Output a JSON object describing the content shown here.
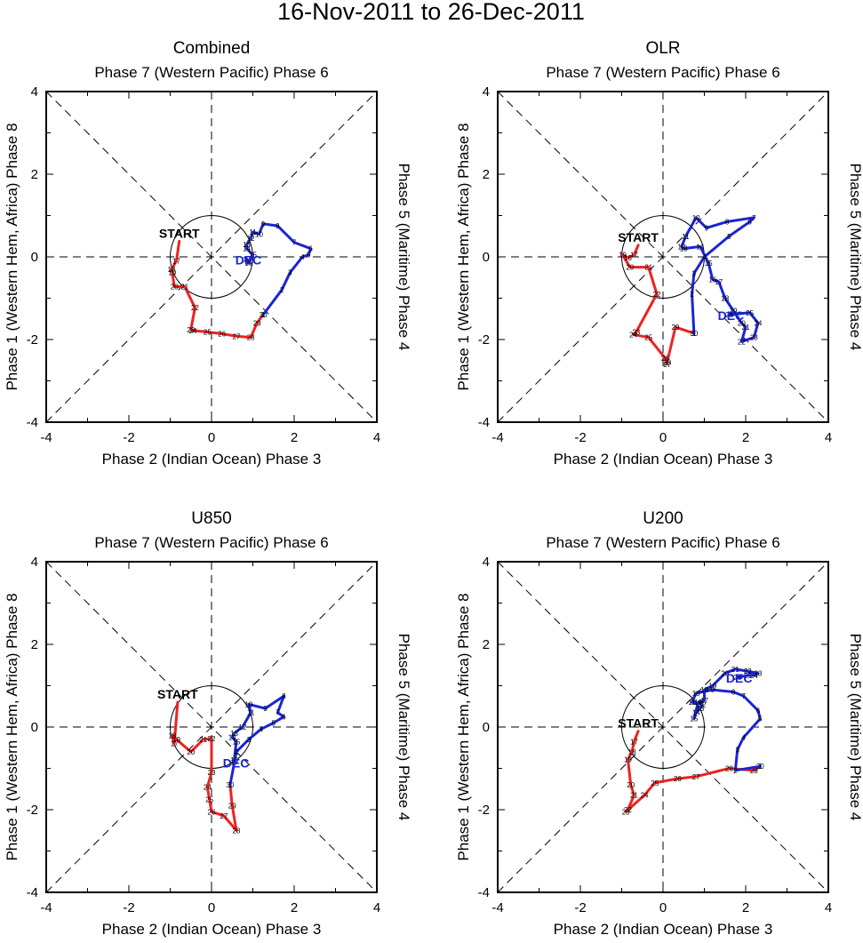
{
  "title": "16-Nov-2011 to 26-Dec-2011",
  "axis_labels": {
    "top": "Phase 7 (Western Pacific) Phase 6",
    "bottom": "Phase 2 (Indian Ocean) Phase 3",
    "left": "Phase 1 (Western Hem, Africa) Phase 8",
    "right": "Phase 5 (Maritime) Phase 4"
  },
  "start_label": "START",
  "dec_label": "DEC",
  "colors": {
    "november": "#ee2222",
    "december": "#1a24d6"
  },
  "chart_data": [
    {
      "type": "line",
      "panel": "Combined",
      "title": "Combined",
      "xlim": [
        -4,
        4
      ],
      "ylim": [
        -4,
        4
      ],
      "xticks": [
        "-4",
        "-2",
        "0",
        "2",
        "4"
      ],
      "yticks": [
        "-4",
        "-2",
        "0",
        "2",
        "4"
      ],
      "series": [
        {
          "name": "November",
          "labels": [
            "",
            "17",
            "18",
            "19",
            "20",
            "21",
            "22",
            "23",
            "24",
            "25",
            "26",
            "27",
            "28",
            "29",
            "30"
          ],
          "x": [
            -0.78,
            -0.85,
            -0.97,
            -0.95,
            -0.9,
            -0.65,
            -0.4,
            -0.5,
            -0.45,
            -0.1,
            0.25,
            0.6,
            0.95,
            1.1,
            1.25
          ],
          "y": [
            0.38,
            -0.1,
            -0.3,
            -0.38,
            -0.72,
            -0.72,
            -1.23,
            -1.76,
            -1.78,
            -1.82,
            -1.86,
            -1.92,
            -1.95,
            -1.6,
            -1.4
          ]
        },
        {
          "name": "December",
          "labels": [
            "1",
            "2",
            "3",
            "4",
            "5",
            "6",
            "7",
            "8",
            "9",
            "10",
            "11",
            "12",
            "13",
            "14",
            "15",
            "16",
            "17"
          ],
          "x": [
            1.25,
            1.7,
            1.9,
            2.2,
            2.35,
            2.4,
            2.0,
            1.6,
            1.25,
            1.15,
            1.0,
            0.95,
            0.85,
            0.85,
            1.0,
            0.9,
            0.85
          ],
          "y": [
            -1.4,
            -0.8,
            -0.38,
            0.0,
            0.05,
            0.2,
            0.35,
            0.75,
            0.8,
            0.55,
            0.6,
            0.45,
            0.3,
            0.2,
            0.05,
            -0.15,
            -0.05
          ]
        }
      ]
    },
    {
      "type": "line",
      "panel": "OLR",
      "title": "OLR",
      "xlim": [
        -4,
        4
      ],
      "ylim": [
        -4,
        4
      ],
      "xticks": [
        "-4",
        "-2",
        "0",
        "2",
        "4"
      ],
      "yticks": [
        "-4",
        "-2",
        "0",
        "2",
        "4"
      ],
      "series": [
        {
          "name": "November",
          "labels": [
            "",
            "17",
            "18",
            "19",
            "20",
            "21",
            "22",
            "23",
            "24",
            "25",
            "26",
            "27",
            "28",
            "29",
            "30"
          ],
          "x": [
            -0.6,
            -0.7,
            -0.85,
            -0.98,
            -0.8,
            -0.35,
            -0.15,
            -0.65,
            -0.72,
            -0.35,
            0.05,
            0.1,
            0.1,
            0.3,
            0.75
          ],
          "y": [
            0.28,
            0.05,
            -0.02,
            0.05,
            -0.25,
            -0.25,
            -0.9,
            -1.82,
            -1.88,
            -1.95,
            -2.45,
            -2.6,
            -2.55,
            -1.7,
            -1.85
          ]
        },
        {
          "name": "December",
          "labels": [
            "1",
            "2",
            "3",
            "4",
            "5",
            "6",
            "7",
            "8",
            "9",
            "10",
            "11",
            "12",
            "13",
            "14",
            "15",
            "16",
            "17",
            "18",
            "19",
            "20",
            "21",
            "22",
            "23",
            "24",
            "25",
            "26"
          ],
          "x": [
            0.75,
            0.7,
            0.75,
            1.0,
            1.6,
            2.1,
            2.2,
            1.55,
            1.05,
            0.8,
            0.55,
            0.45,
            0.5,
            0.9,
            1.1,
            1.2,
            1.35,
            1.5,
            1.7,
            1.9,
            2.0,
            1.9,
            2.2,
            2.3,
            2.1,
            1.6
          ],
          "y": [
            -1.85,
            -0.9,
            -0.4,
            0.0,
            0.5,
            0.85,
            0.95,
            0.85,
            0.7,
            0.95,
            0.5,
            0.25,
            0.2,
            0.25,
            -0.15,
            -0.55,
            -0.6,
            -1.0,
            -1.3,
            -1.6,
            -1.7,
            -2.05,
            -1.95,
            -1.6,
            -1.35,
            -1.4
          ]
        }
      ]
    },
    {
      "type": "line",
      "panel": "U850",
      "title": "U850",
      "xlim": [
        -4,
        4
      ],
      "ylim": [
        -4,
        4
      ],
      "xticks": [
        "-4",
        "-2",
        "0",
        "2",
        "4"
      ],
      "yticks": [
        "-4",
        "-2",
        "0",
        "2",
        "4"
      ],
      "series": [
        {
          "name": "November",
          "labels": [
            "",
            "17",
            "18",
            "19",
            "20",
            "21",
            "22",
            "23",
            "24",
            "25",
            "26",
            "27",
            "28",
            "29",
            "30"
          ],
          "x": [
            -0.82,
            -0.9,
            -0.95,
            -0.85,
            -0.5,
            -0.2,
            0.0,
            0.0,
            -0.1,
            -0.05,
            0.0,
            0.3,
            0.6,
            0.5,
            0.45
          ],
          "y": [
            0.6,
            -0.4,
            -0.2,
            -0.3,
            -0.6,
            -0.3,
            -0.28,
            -1.1,
            -1.45,
            -1.75,
            -2.05,
            -2.15,
            -2.5,
            -1.9,
            -1.4
          ]
        },
        {
          "name": "December",
          "labels": [
            "1",
            "2",
            "3",
            "4",
            "5",
            "6",
            "7",
            "8",
            "9",
            "10",
            "11",
            "12",
            "13",
            "14",
            "15",
            "16",
            "17"
          ],
          "x": [
            0.45,
            0.6,
            0.9,
            1.2,
            1.5,
            1.75,
            1.6,
            1.75,
            1.3,
            0.9,
            0.95,
            0.75,
            0.55,
            0.5,
            0.6,
            0.55,
            0.55
          ],
          "y": [
            -1.4,
            -0.6,
            -0.3,
            -0.05,
            0.1,
            0.25,
            0.35,
            0.75,
            0.45,
            0.55,
            0.35,
            0.0,
            -0.15,
            -0.25,
            -0.35,
            -0.8,
            -0.85
          ]
        }
      ]
    },
    {
      "type": "line",
      "panel": "U200",
      "title": "U200",
      "xlim": [
        -4,
        4
      ],
      "ylim": [
        -4,
        4
      ],
      "xticks": [
        "-4",
        "-2",
        "0",
        "2",
        "4"
      ],
      "yticks": [
        "-4",
        "-2",
        "0",
        "2",
        "4"
      ],
      "series": [
        {
          "name": "November",
          "labels": [
            "",
            "17",
            "18",
            "19",
            "20",
            "21",
            "22",
            "23",
            "24",
            "25",
            "26",
            "27",
            "28",
            "29",
            "30"
          ],
          "x": [
            -0.6,
            -0.7,
            -0.75,
            -0.85,
            -0.78,
            -0.7,
            -0.85,
            -0.9,
            -0.45,
            -0.2,
            0.35,
            0.8,
            1.6,
            2.2,
            2.35
          ],
          "y": [
            -0.1,
            -0.35,
            -0.6,
            -0.78,
            -1.4,
            -1.65,
            -2.0,
            -2.05,
            -1.65,
            -1.35,
            -1.25,
            -1.2,
            -1.0,
            -1.05,
            -0.95
          ]
        },
        {
          "name": "December",
          "labels": [
            "1",
            "2",
            "3",
            "4",
            "5",
            "6",
            "7",
            "8",
            "9",
            "10",
            "11",
            "12",
            "13",
            "14",
            "15",
            "16",
            "17",
            "18",
            "19",
            "20",
            "21",
            "22",
            "23",
            "24",
            "25",
            "26"
          ],
          "x": [
            2.35,
            1.75,
            1.8,
            1.95,
            2.35,
            2.3,
            1.95,
            1.7,
            1.2,
            0.8,
            0.7,
            0.95,
            0.9,
            0.8,
            0.75,
            0.85,
            1.0,
            1.0,
            1.2,
            1.5,
            1.75,
            2.05,
            2.3,
            2.2,
            2.05,
            1.8
          ],
          "y": [
            -0.95,
            -1.05,
            -0.55,
            -0.25,
            0.2,
            0.4,
            0.75,
            0.85,
            0.9,
            0.82,
            0.6,
            0.55,
            0.45,
            0.35,
            0.2,
            0.6,
            0.65,
            0.9,
            1.0,
            1.3,
            1.4,
            1.35,
            1.3,
            1.25,
            1.25,
            1.2
          ]
        }
      ]
    }
  ]
}
